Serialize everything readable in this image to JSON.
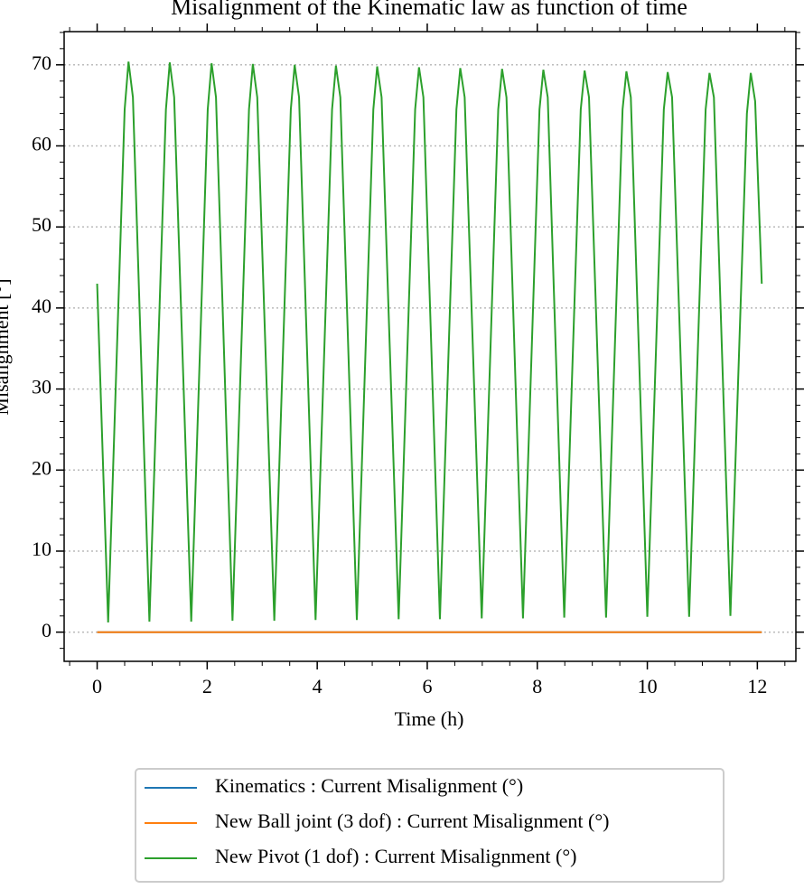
{
  "chart_data": {
    "type": "line",
    "title": "Misalignment of the Kinematic law as function of time",
    "x_label": "Time (h)",
    "y_label": "Misalignment [°]",
    "xlim": [
      -0.6,
      12.7
    ],
    "ylim": [
      -3.6,
      74.1
    ],
    "xticks": [
      0,
      2,
      4,
      6,
      8,
      10,
      12
    ],
    "yticks": [
      0,
      10,
      20,
      30,
      40,
      50,
      60,
      70
    ],
    "grid": true,
    "legend": "below",
    "series": [
      {
        "name": "Kinematics : Current Misalignment (°)",
        "color": "#1f77b4",
        "x": [
          0,
          12.08
        ],
        "values": [
          0,
          0
        ]
      },
      {
        "name": "New Ball joint (3 dof) : Current Misalignment (°)",
        "color": "#ff7f0e",
        "x": [
          0,
          12.08
        ],
        "values": [
          0,
          0
        ]
      },
      {
        "name": "New Pivot (1 dof) : Current Misalignment (°)",
        "color": "#2ca02c",
        "x": [
          0,
          0.2,
          0.5,
          0.57,
          0.65,
          0.95,
          1.25,
          1.32,
          1.4,
          1.71,
          2.01,
          2.08,
          2.16,
          2.46,
          2.76,
          2.83,
          2.91,
          3.22,
          3.52,
          3.59,
          3.67,
          3.97,
          4.27,
          4.34,
          4.42,
          4.72,
          5.02,
          5.09,
          5.17,
          5.48,
          5.78,
          5.85,
          5.93,
          6.23,
          6.53,
          6.6,
          6.68,
          6.99,
          7.29,
          7.36,
          7.44,
          7.74,
          8.04,
          8.11,
          8.19,
          8.49,
          8.79,
          8.86,
          8.94,
          9.25,
          9.55,
          9.62,
          9.7,
          10.0,
          10.3,
          10.37,
          10.45,
          10.76,
          11.06,
          11.13,
          11.21,
          11.51,
          11.81,
          11.88,
          11.96,
          12.08
        ],
        "values": [
          43,
          1.2,
          64.5,
          70.4,
          66,
          1.3,
          64.5,
          70.3,
          66,
          1.3,
          64.5,
          70.2,
          66,
          1.4,
          64.5,
          70.1,
          66,
          1.4,
          64.5,
          70.0,
          66,
          1.5,
          64.5,
          69.9,
          66,
          1.5,
          64.5,
          69.8,
          66,
          1.6,
          64.5,
          69.7,
          66,
          1.6,
          64.5,
          69.6,
          66,
          1.7,
          64.5,
          69.5,
          66,
          1.7,
          64.5,
          69.4,
          66,
          1.8,
          64.5,
          69.3,
          66,
          1.8,
          64.5,
          69.2,
          66,
          1.9,
          64.5,
          69.1,
          66,
          1.9,
          64.5,
          69.0,
          66,
          2.0,
          64.0,
          69.0,
          65.5,
          43
        ]
      }
    ]
  }
}
